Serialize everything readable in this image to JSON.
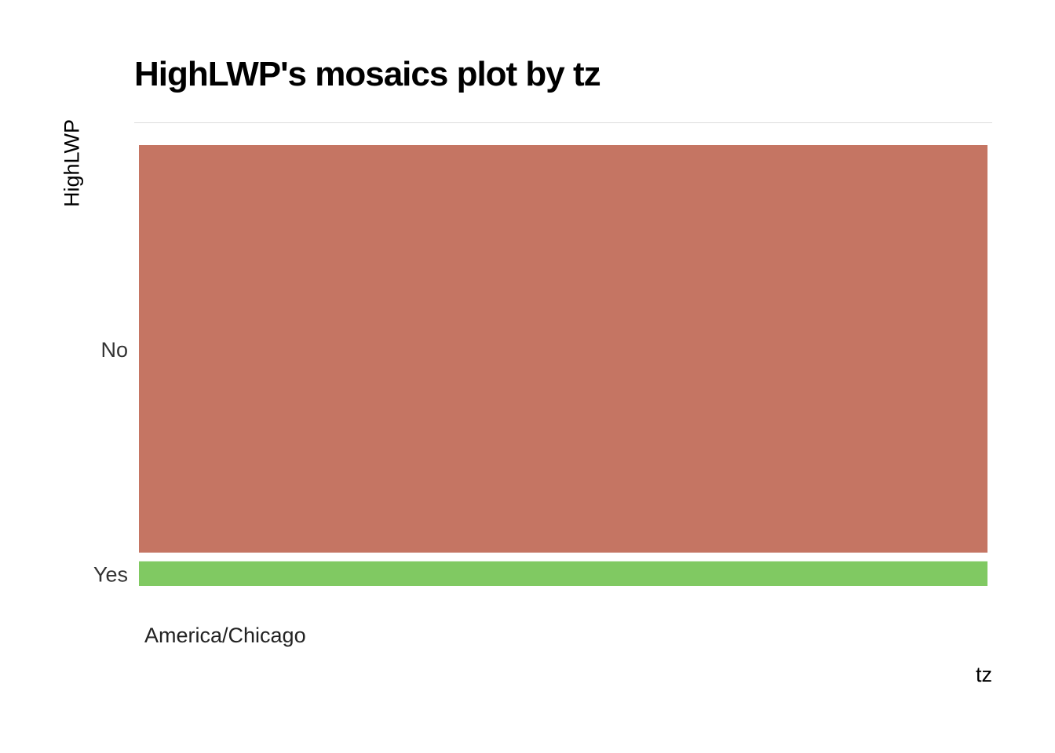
{
  "chart_data": {
    "type": "mosaic",
    "title": "HighLWP's mosaics plot by tz",
    "xlabel": "tz",
    "ylabel": "HighLWP",
    "categories": [
      "America/Chicago"
    ],
    "levels": [
      "No",
      "Yes"
    ],
    "proportions": [
      {
        "tz": "America/Chicago",
        "No": 0.943,
        "Yes": 0.057
      }
    ],
    "colors": {
      "No": "#c57563",
      "Yes": "#80c962"
    },
    "grid": false,
    "legend": "none"
  }
}
